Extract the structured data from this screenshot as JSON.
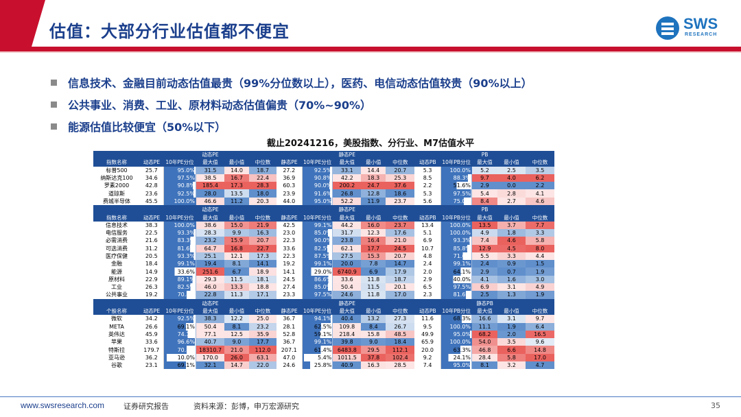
{
  "header": {
    "title": "估值：大部分行业估值都不便宜"
  },
  "logo": {
    "name": "SWS",
    "sub": "RESEARCH"
  },
  "bullets": [
    "信息技术、金融目前动态估值最贵（99%分位数以上），医药、电信动态估值较贵（90%以上）",
    "公共事业、消费、工业、原材料动态估值偏贵（70%~90%）",
    "能源估值比较便宜（50%以下）"
  ],
  "table_title": "截止20241216，美股指数、分行业、M7估值水平",
  "group_headers": {
    "dynamic_pe": "动态PE",
    "static_pe": "静态PE",
    "pb": "PB",
    "static_pb": "静态PB"
  },
  "columns": [
    "动态PE",
    "10年PE分位",
    "最大值",
    "最小值",
    "中位数",
    "静态PE",
    "10年PE分位",
    "最大值",
    "最小值",
    "中位数",
    "动态PB",
    "10年PB分位",
    "最大值",
    "最小值",
    "中位数"
  ],
  "colors": {
    "header": "#1f4e96",
    "high": "#e8504c",
    "low": "#4e83c6",
    "pct_fill": "#3f73bb"
  },
  "sections": [
    {
      "title": "指数名称",
      "pb_group": "PB",
      "rows": [
        {
          "name": "标普500",
          "v": [
            "25.7",
            "95.0%",
            "31.5",
            "14.0",
            "18.7",
            "27.2",
            "92.5%",
            "33.1",
            "14.4",
            "20.7",
            "5.3",
            "100.0%",
            "5.2",
            "2.5",
            "3.5"
          ]
        },
        {
          "name": "纳斯达克100",
          "v": [
            "34.6",
            "97.5%",
            "38.5",
            "16.7",
            "22.4",
            "36.9",
            "90.8%",
            "42.2",
            "18.3",
            "25.3",
            "8.5",
            "88.3%",
            "9.7",
            "4.0",
            "6.2"
          ]
        },
        {
          "name": "罗素2000",
          "v": [
            "42.8",
            "90.8%",
            "185.4",
            "17.3",
            "28.3",
            "60.3",
            "90.0%",
            "200.2",
            "24.7",
            "37.6",
            "2.2",
            "51.6%",
            "2.9",
            "0.0",
            "2.2"
          ]
        },
        {
          "name": "道琼斯",
          "v": [
            "23.6",
            "92.5%",
            "28.0",
            "13.5",
            "18.0",
            "23.9",
            "91.6%",
            "26.8",
            "12.8",
            "18.6",
            "5.3",
            "97.5%",
            "5.4",
            "2.8",
            "4.1"
          ]
        },
        {
          "name": "费城半导体",
          "v": [
            "45.5",
            "100.0%",
            "46.6",
            "11.2",
            "20.3",
            "44.0",
            "95.0%",
            "52.2",
            "11.9",
            "23.7",
            "5.6",
            "75.0%",
            "8.4",
            "2.7",
            "4.6"
          ]
        }
      ]
    },
    {
      "title": "指数名称",
      "pb_group": "PB",
      "rows": [
        {
          "name": "信息技术",
          "v": [
            "38.3",
            "100.0%",
            "38.6",
            "15.0",
            "21.9",
            "42.5",
            "99.1%",
            "44.2",
            "16.0",
            "23.7",
            "13.4",
            "100.0%",
            "13.5",
            "3.7",
            "7.7"
          ]
        },
        {
          "name": "电信服务",
          "v": [
            "22.5",
            "93.3%",
            "28.3",
            "9.9",
            "16.3",
            "23.0",
            "85.0%",
            "31.7",
            "12.3",
            "17.6",
            "5.1",
            "100.0%",
            "4.9",
            "1.8",
            "3.3"
          ]
        },
        {
          "name": "必需消费",
          "v": [
            "21.6",
            "83.3%",
            "23.2",
            "15.9",
            "20.7",
            "22.3",
            "90.0%",
            "23.8",
            "16.4",
            "21.0",
            "6.9",
            "93.3%",
            "7.4",
            "4.6",
            "5.8"
          ]
        },
        {
          "name": "可选消费",
          "v": [
            "31.2",
            "81.6%",
            "64.7",
            "16.8",
            "22.7",
            "33.6",
            "82.5%",
            "62.1",
            "17.7",
            "24.5",
            "10.7",
            "85.8%",
            "12.9",
            "4.5",
            "8.0"
          ]
        },
        {
          "name": "医疗保健",
          "v": [
            "20.5",
            "93.3%",
            "25.1",
            "12.1",
            "17.3",
            "22.3",
            "87.5%",
            "27.5",
            "15.3",
            "20.7",
            "4.8",
            "71.6%",
            "5.5",
            "3.3",
            "4.4"
          ]
        },
        {
          "name": "金融",
          "v": [
            "18.4",
            "99.1%",
            "19.4",
            "8.1",
            "14.1",
            "19.2",
            "99.1%",
            "20.0",
            "7.8",
            "14.7",
            "2.4",
            "99.1%",
            "2.4",
            "0.9",
            "1.5"
          ]
        },
        {
          "name": "能源",
          "v": [
            "14.9",
            "33.6%",
            "251.6",
            "6.7",
            "18.9",
            "14.1",
            "29.0%",
            "6740.9",
            "6.9",
            "17.9",
            "2.0",
            "64.1%",
            "2.9",
            "0.7",
            "1.9"
          ]
        },
        {
          "name": "原材料",
          "v": [
            "22.9",
            "89.1%",
            "29.3",
            "11.5",
            "18.1",
            "24.5",
            "86.6%",
            "33.6",
            "11.8",
            "18.7",
            "2.9",
            "40.0%",
            "4.1",
            "1.6",
            "3.0"
          ]
        },
        {
          "name": "工业",
          "v": [
            "26.3",
            "82.5%",
            "46.0",
            "13.3",
            "18.8",
            "27.4",
            "85.0%",
            "50.4",
            "11.5",
            "20.1",
            "6.5",
            "97.5%",
            "6.9",
            "3.1",
            "4.9"
          ]
        },
        {
          "name": "公共事业",
          "v": [
            "19.2",
            "70.8%",
            "22.8",
            "11.3",
            "17.1",
            "23.3",
            "97.5%",
            "24.6",
            "11.8",
            "17.0",
            "2.3",
            "81.6%",
            "2.5",
            "1.3",
            "1.9"
          ]
        }
      ]
    },
    {
      "title": "个股名称",
      "pb_group": "静态PB",
      "rows": [
        {
          "name": "微软",
          "v": [
            "34.2",
            "92.5%",
            "38.3",
            "12.2",
            "25.0",
            "36.7",
            "94.1%",
            "40.4",
            "13.2",
            "27.3",
            "11.6",
            "68.3%",
            "16.6",
            "3.1",
            "9.7"
          ]
        },
        {
          "name": "META",
          "v": [
            "26.6",
            "69.1%",
            "50.4",
            "8.1",
            "23.2",
            "28.1",
            "62.5%",
            "109.8",
            "8.4",
            "26.7",
            "9.5",
            "100.0%",
            "11.1",
            "1.9",
            "6.4"
          ]
        },
        {
          "name": "英伟达",
          "v": [
            "45.9",
            "74.1%",
            "77.1",
            "12.5",
            "35.9",
            "52.8",
            "59.1%",
            "218.4",
            "15.8",
            "48.5",
            "49.9",
            "95.0%",
            "68.2",
            "2.0",
            "16.5"
          ]
        },
        {
          "name": "苹果",
          "v": [
            "33.6",
            "96.6%",
            "40.7",
            "9.0",
            "17.7",
            "36.7",
            "99.1%",
            "39.8",
            "9.0",
            "18.4",
            "65.9",
            "100.0%",
            "54.0",
            "3.5",
            "9.6"
          ]
        },
        {
          "name": "特斯拉",
          "v": [
            "179.7",
            "70.8%",
            "18310.7",
            "21.0",
            "112.0",
            "207.1",
            "61.4%",
            "6483.8",
            "29.5",
            "112.1",
            "20.0",
            "63.3%",
            "46.8",
            "6.6",
            "14.8"
          ]
        },
        {
          "name": "亚马逊",
          "v": [
            "36.2",
            "10.0%",
            "170.0",
            "26.0",
            "63.1",
            "47.0",
            "5.4%",
            "1011.5",
            "37.8",
            "102.4",
            "9.2",
            "24.1%",
            "28.4",
            "5.8",
            "17.0"
          ]
        },
        {
          "name": "谷歌",
          "v": [
            "23.1",
            "69.1%",
            "32.1",
            "14.7",
            "22.0",
            "24.6",
            "25.8%",
            "40.9",
            "16.3",
            "28.5",
            "7.4",
            "95.0%",
            "8.1",
            "3.2",
            "4.7"
          ]
        }
      ]
    }
  ],
  "footer": {
    "url": "www.swsresearch.com",
    "report": "证券研究报告",
    "source": "资料来源：彭博，申万宏源研究",
    "page": "35"
  }
}
